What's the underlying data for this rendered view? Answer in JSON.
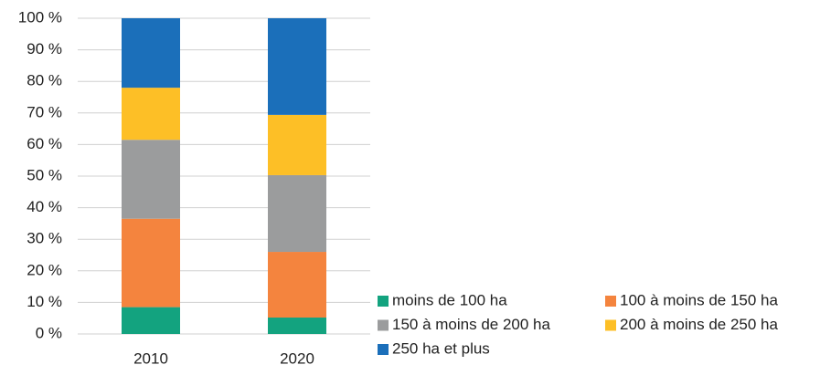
{
  "chart_data": {
    "type": "stacked_bar",
    "categories": [
      "2010",
      "2020"
    ],
    "series": [
      {
        "name": "moins de 100 ha",
        "color": "#13a37f",
        "values": [
          8.5,
          5.2
        ]
      },
      {
        "name": "100 à moins de 150 ha",
        "color": "#f4843e",
        "values": [
          28,
          20.8
        ]
      },
      {
        "name": "150 à moins de 200 ha",
        "color": "#9b9c9d",
        "values": [
          25,
          24.3
        ]
      },
      {
        "name": "200 à moins de 250 ha",
        "color": "#fdbf26",
        "values": [
          16.5,
          19.1
        ]
      },
      {
        "name": "250 ha et plus",
        "color": "#1b6fba",
        "values": [
          22,
          30.6
        ]
      }
    ],
    "ylim": [
      0,
      100
    ],
    "yticks": [
      {
        "value": 0,
        "label": "0 %"
      },
      {
        "value": 10,
        "label": "10 %"
      },
      {
        "value": 20,
        "label": "20 %"
      },
      {
        "value": 30,
        "label": "30 %"
      },
      {
        "value": 40,
        "label": "40 %"
      },
      {
        "value": 50,
        "label": "50 %"
      },
      {
        "value": 60,
        "label": "60 %"
      },
      {
        "value": 70,
        "label": "70 %"
      },
      {
        "value": 80,
        "label": "80 %"
      },
      {
        "value": 90,
        "label": "90 %"
      },
      {
        "value": 100,
        "label": "100 %"
      }
    ],
    "grid": true
  }
}
